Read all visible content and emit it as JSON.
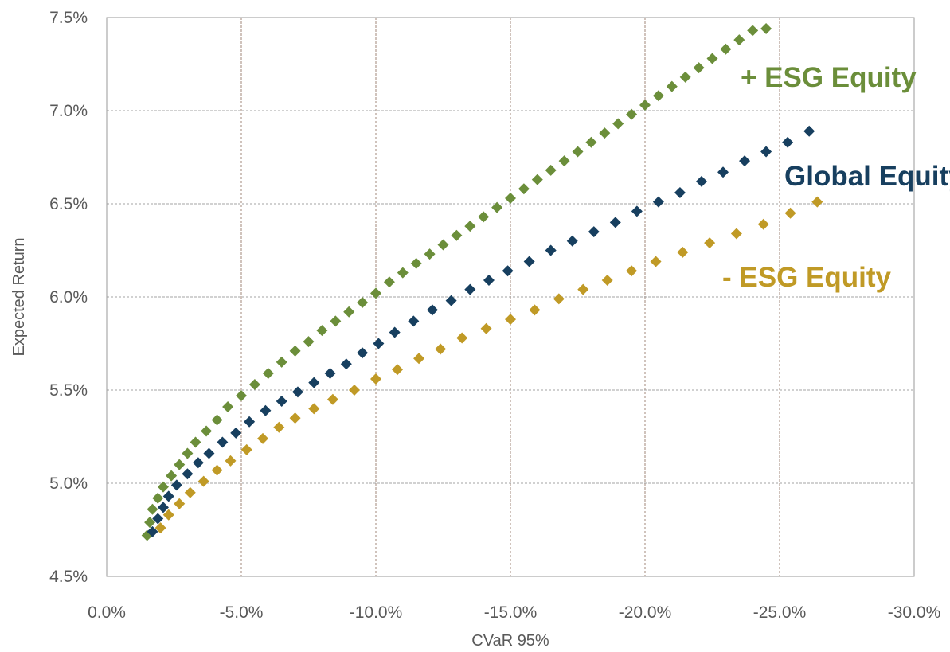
{
  "chart_data": {
    "type": "scatter",
    "title": "",
    "xlabel": "CVaR 95%",
    "ylabel": "Expected Return",
    "xlim": [
      0,
      -30
    ],
    "ylim": [
      4.5,
      7.5
    ],
    "x_ticks": [
      "0.0%",
      "-5.0%",
      "-10.0%",
      "-15.0%",
      "-20.0%",
      "-25.0%",
      "-30.0%"
    ],
    "y_ticks": [
      "4.5%",
      "5.0%",
      "5.5%",
      "6.0%",
      "6.5%",
      "7.0%",
      "7.5%"
    ],
    "grid": true,
    "series": [
      {
        "name": "+ ESG Equity",
        "color": "#6b8e3a",
        "x": [
          -1.5,
          -1.6,
          -1.7,
          -1.9,
          -2.1,
          -2.4,
          -2.7,
          -3.0,
          -3.3,
          -3.7,
          -4.1,
          -4.5,
          -5.0,
          -5.5,
          -6.0,
          -6.5,
          -7.0,
          -7.5,
          -8.0,
          -8.5,
          -9.0,
          -9.5,
          -10.0,
          -10.5,
          -11.0,
          -11.5,
          -12.0,
          -12.5,
          -13.0,
          -13.5,
          -14.0,
          -14.5,
          -15.0,
          -15.5,
          -16.0,
          -16.5,
          -17.0,
          -17.5,
          -18.0,
          -18.5,
          -19.0,
          -19.5,
          -20.0,
          -20.5,
          -21.0,
          -21.5,
          -22.0,
          -22.5,
          -23.0,
          -23.5,
          -24.0,
          -24.5
        ],
        "y": [
          4.72,
          4.79,
          4.86,
          4.92,
          4.98,
          5.04,
          5.1,
          5.16,
          5.22,
          5.28,
          5.34,
          5.41,
          5.47,
          5.53,
          5.59,
          5.65,
          5.71,
          5.76,
          5.82,
          5.87,
          5.92,
          5.97,
          6.02,
          6.08,
          6.13,
          6.18,
          6.23,
          6.28,
          6.33,
          6.38,
          6.43,
          6.48,
          6.53,
          6.58,
          6.63,
          6.68,
          6.73,
          6.78,
          6.83,
          6.88,
          6.93,
          6.98,
          7.03,
          7.08,
          7.13,
          7.18,
          7.23,
          7.28,
          7.33,
          7.38,
          7.43,
          7.44
        ]
      },
      {
        "name": "Global Equity",
        "color": "#173f5f",
        "x": [
          -1.7,
          -1.9,
          -2.1,
          -2.3,
          -2.6,
          -3.0,
          -3.4,
          -3.8,
          -4.3,
          -4.8,
          -5.3,
          -5.9,
          -6.5,
          -7.1,
          -7.7,
          -8.3,
          -8.9,
          -9.5,
          -10.1,
          -10.7,
          -11.4,
          -12.1,
          -12.8,
          -13.5,
          -14.2,
          -14.9,
          -15.7,
          -16.5,
          -17.3,
          -18.1,
          -18.9,
          -19.7,
          -20.5,
          -21.3,
          -22.1,
          -22.9,
          -23.7,
          -24.5,
          -25.3,
          -26.1
        ],
        "y": [
          4.74,
          4.81,
          4.87,
          4.93,
          4.99,
          5.05,
          5.11,
          5.16,
          5.22,
          5.27,
          5.33,
          5.39,
          5.44,
          5.49,
          5.54,
          5.59,
          5.64,
          5.7,
          5.75,
          5.81,
          5.87,
          5.93,
          5.98,
          6.04,
          6.09,
          6.14,
          6.19,
          6.25,
          6.3,
          6.35,
          6.4,
          6.46,
          6.51,
          6.56,
          6.62,
          6.67,
          6.73,
          6.78,
          6.83,
          6.89
        ]
      },
      {
        "name": "- ESG Equity",
        "color": "#c09a26",
        "x": [
          -2.0,
          -2.3,
          -2.7,
          -3.1,
          -3.6,
          -4.1,
          -4.6,
          -5.2,
          -5.8,
          -6.4,
          -7.0,
          -7.7,
          -8.4,
          -9.2,
          -10.0,
          -10.8,
          -11.6,
          -12.4,
          -13.2,
          -14.1,
          -15.0,
          -15.9,
          -16.8,
          -17.7,
          -18.6,
          -19.5,
          -20.4,
          -21.4,
          -22.4,
          -23.4,
          -24.4,
          -25.4,
          -26.4
        ],
        "y": [
          4.76,
          4.83,
          4.89,
          4.95,
          5.01,
          5.07,
          5.12,
          5.18,
          5.24,
          5.3,
          5.35,
          5.4,
          5.45,
          5.5,
          5.56,
          5.61,
          5.67,
          5.72,
          5.78,
          5.83,
          5.88,
          5.93,
          5.99,
          6.04,
          6.09,
          6.14,
          6.19,
          6.24,
          6.29,
          6.34,
          6.39,
          6.45,
          6.51
        ]
      }
    ]
  }
}
